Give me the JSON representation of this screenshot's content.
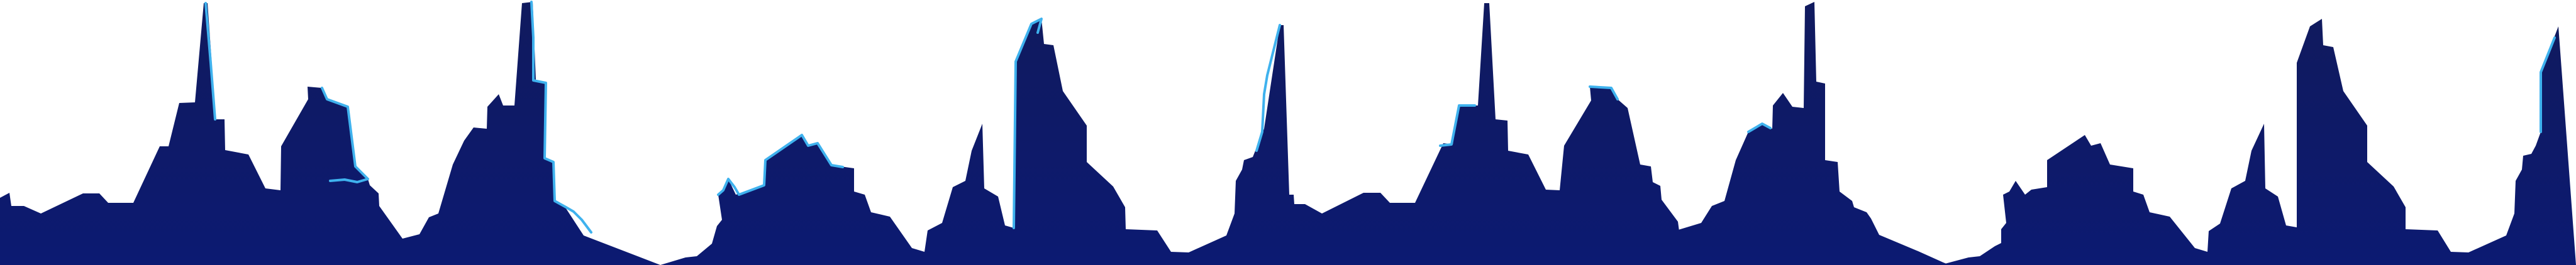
{
  "artwork": {
    "kind": "city-skyline-silhouette-strip",
    "repeats": 2,
    "colors": {
      "background": "#ffffff",
      "silhouette_top": "#101a5e",
      "silhouette_bottom": "#0c1a72",
      "edge_highlight": "#3fb2ee"
    }
  }
}
